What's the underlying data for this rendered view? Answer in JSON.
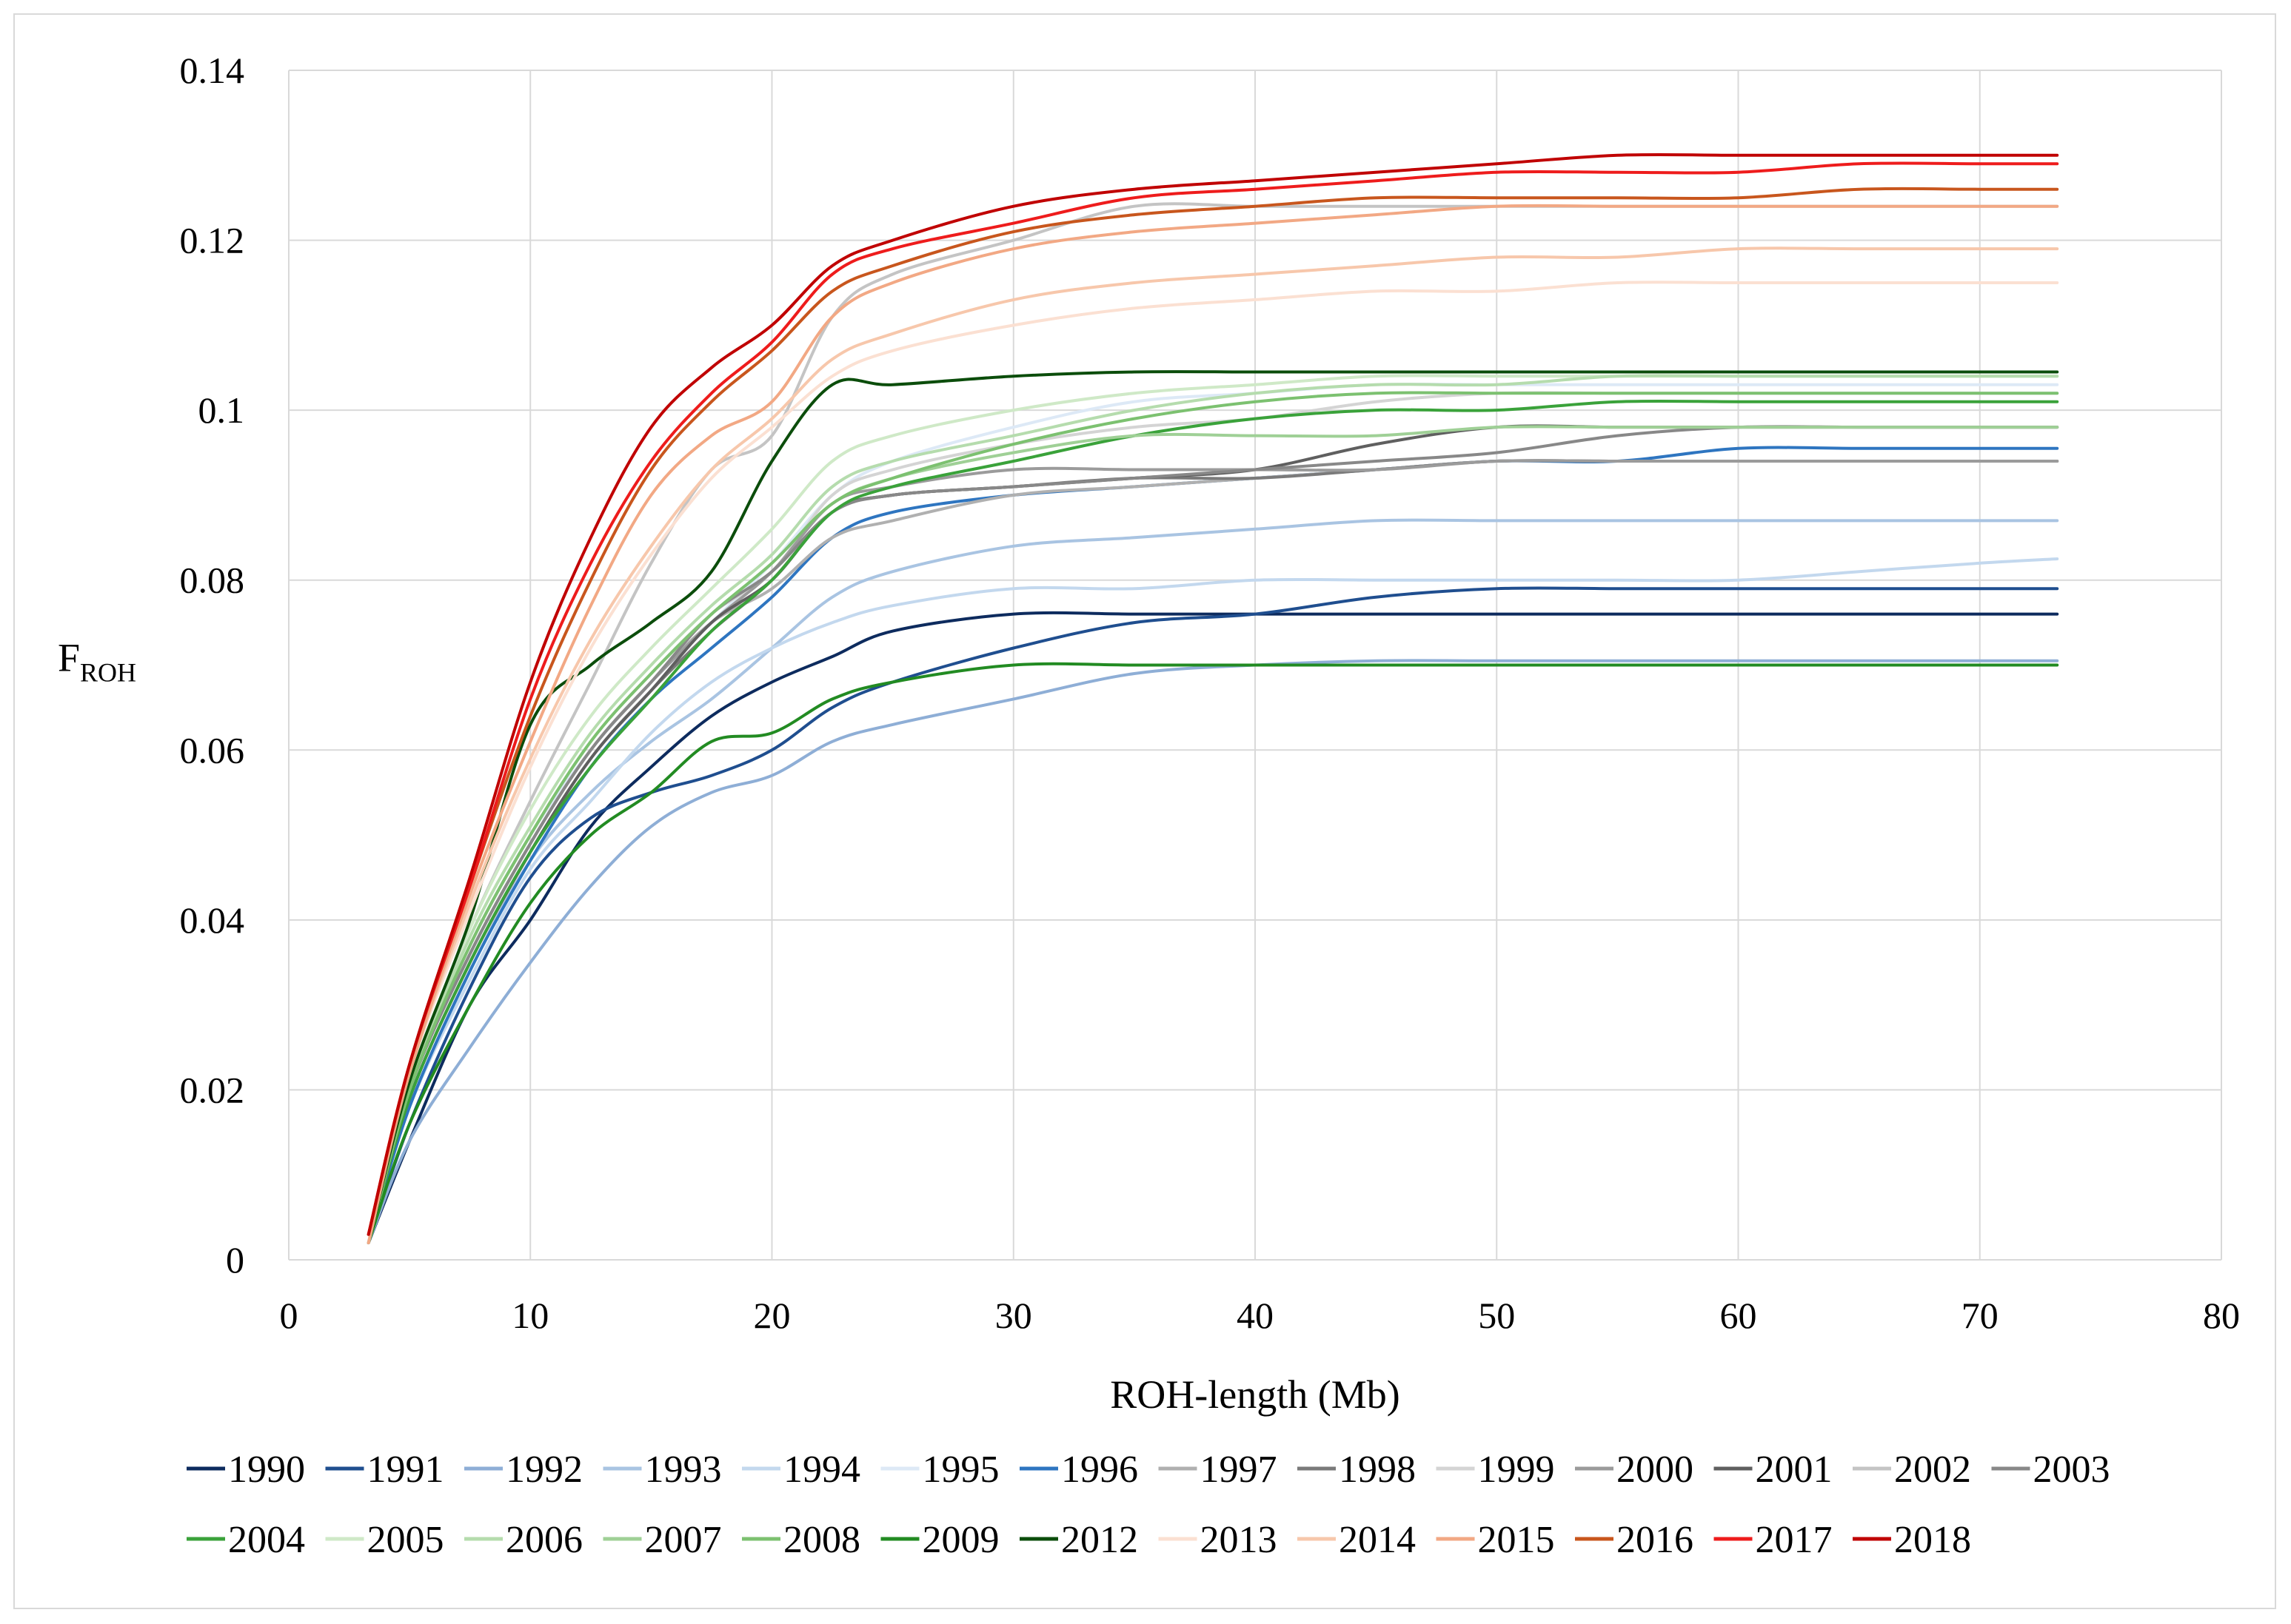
{
  "chart_data": {
    "type": "line",
    "title": "",
    "xlabel": "ROH-length (Mb)",
    "ylabel_main": "F",
    "ylabel_sub": "ROH",
    "xlim": [
      0,
      80
    ],
    "ylim": [
      0,
      0.14
    ],
    "xticks": [
      "0",
      "10",
      "20",
      "30",
      "40",
      "50",
      "60",
      "70",
      "80"
    ],
    "yticks": [
      "0",
      "0.02",
      "0.04",
      "0.06",
      "0.08",
      "0.1",
      "0.12",
      "0.14"
    ],
    "grid": true,
    "legend_position": "bottom",
    "x": [
      3.3,
      5,
      7.5,
      10,
      12.5,
      15,
      17.5,
      20,
      22.5,
      25,
      30,
      35,
      40,
      45,
      50,
      55,
      60,
      65,
      70,
      73.2
    ],
    "series": [
      {
        "name": "1990",
        "color": "#0d2b5e",
        "values": [
          0.002,
          0.014,
          0.03,
          0.04,
          0.051,
          0.058,
          0.064,
          0.068,
          0.071,
          0.074,
          0.076,
          0.076,
          0.076,
          0.076,
          0.076,
          0.076,
          0.076,
          0.076,
          0.076,
          0.076
        ]
      },
      {
        "name": "1991",
        "color": "#1f4e8f",
        "values": [
          0.002,
          0.016,
          0.032,
          0.045,
          0.052,
          0.055,
          0.057,
          0.06,
          0.065,
          0.068,
          0.072,
          0.075,
          0.076,
          0.078,
          0.079,
          0.079,
          0.079,
          0.079,
          0.079,
          0.079
        ]
      },
      {
        "name": "1992",
        "color": "#8eaed6",
        "values": [
          0.002,
          0.014,
          0.025,
          0.035,
          0.044,
          0.051,
          0.055,
          0.057,
          0.061,
          0.063,
          0.066,
          0.069,
          0.07,
          0.0705,
          0.0705,
          0.0705,
          0.0705,
          0.0705,
          0.0705,
          0.0705
        ]
      },
      {
        "name": "1993",
        "color": "#a9c4e2",
        "values": [
          0.002,
          0.018,
          0.034,
          0.047,
          0.055,
          0.061,
          0.066,
          0.072,
          0.078,
          0.081,
          0.084,
          0.085,
          0.086,
          0.087,
          0.087,
          0.087,
          0.087,
          0.087,
          0.087,
          0.087
        ]
      },
      {
        "name": "1994",
        "color": "#c3d8ee",
        "values": [
          0.002,
          0.018,
          0.033,
          0.046,
          0.054,
          0.062,
          0.068,
          0.072,
          0.075,
          0.077,
          0.079,
          0.079,
          0.08,
          0.08,
          0.08,
          0.08,
          0.08,
          0.081,
          0.082,
          0.0825
        ]
      },
      {
        "name": "1995",
        "color": "#dde9f6",
        "values": [
          0.002,
          0.02,
          0.037,
          0.05,
          0.06,
          0.068,
          0.075,
          0.082,
          0.09,
          0.094,
          0.098,
          0.101,
          0.102,
          0.103,
          0.103,
          0.103,
          0.103,
          0.103,
          0.103,
          0.103
        ]
      },
      {
        "name": "1996",
        "color": "#2e75c0",
        "values": [
          0.002,
          0.018,
          0.034,
          0.047,
          0.058,
          0.066,
          0.072,
          0.078,
          0.085,
          0.088,
          0.09,
          0.091,
          0.092,
          0.093,
          0.094,
          0.094,
          0.0955,
          0.0955,
          0.0955,
          0.0955
        ]
      },
      {
        "name": "1997",
        "color": "#b0b0b0",
        "values": [
          0.002,
          0.02,
          0.036,
          0.049,
          0.06,
          0.068,
          0.075,
          0.079,
          0.085,
          0.087,
          0.09,
          0.091,
          0.092,
          0.093,
          0.094,
          0.094,
          0.094,
          0.094,
          0.094,
          0.094
        ]
      },
      {
        "name": "1998",
        "color": "#7a7a7a",
        "values": [
          0.002,
          0.019,
          0.035,
          0.048,
          0.059,
          0.067,
          0.074,
          0.08,
          0.088,
          0.09,
          0.091,
          0.092,
          0.092,
          0.093,
          0.094,
          0.094,
          0.094,
          0.094,
          0.094,
          0.094
        ]
      },
      {
        "name": "1999",
        "color": "#d4d4d4",
        "values": [
          0.002,
          0.02,
          0.037,
          0.05,
          0.061,
          0.069,
          0.076,
          0.081,
          0.09,
          0.093,
          0.096,
          0.098,
          0.099,
          0.101,
          0.102,
          0.102,
          0.102,
          0.102,
          0.102,
          0.102
        ]
      },
      {
        "name": "2000",
        "color": "#9b9b9b",
        "values": [
          0.002,
          0.02,
          0.036,
          0.049,
          0.06,
          0.068,
          0.075,
          0.081,
          0.089,
          0.091,
          0.093,
          0.093,
          0.093,
          0.093,
          0.094,
          0.094,
          0.094,
          0.094,
          0.094,
          0.094
        ]
      },
      {
        "name": "2001",
        "color": "#5f5f5f",
        "values": [
          0.002,
          0.019,
          0.035,
          0.048,
          0.059,
          0.067,
          0.075,
          0.08,
          0.088,
          0.09,
          0.091,
          0.092,
          0.093,
          0.096,
          0.098,
          0.098,
          0.098,
          0.098,
          0.098,
          0.098
        ]
      },
      {
        "name": "2002",
        "color": "#c4c4c4",
        "values": [
          0.002,
          0.021,
          0.039,
          0.054,
          0.068,
          0.082,
          0.093,
          0.097,
          0.111,
          0.116,
          0.12,
          0.124,
          0.124,
          0.124,
          0.124,
          0.124,
          0.124,
          0.124,
          0.124,
          0.124
        ]
      },
      {
        "name": "2003",
        "color": "#888888",
        "values": [
          0.002,
          0.02,
          0.036,
          0.049,
          0.06,
          0.068,
          0.076,
          0.081,
          0.088,
          0.09,
          0.091,
          0.092,
          0.093,
          0.094,
          0.095,
          0.097,
          0.098,
          0.098,
          0.098,
          0.098
        ]
      },
      {
        "name": "2004",
        "color": "#3aa23a",
        "values": [
          0.002,
          0.019,
          0.035,
          0.048,
          0.058,
          0.066,
          0.074,
          0.08,
          0.088,
          0.091,
          0.094,
          0.097,
          0.099,
          0.1,
          0.1,
          0.101,
          0.101,
          0.101,
          0.101,
          0.101
        ]
      },
      {
        "name": "2005",
        "color": "#cfe9c7",
        "values": [
          0.002,
          0.021,
          0.039,
          0.053,
          0.064,
          0.072,
          0.079,
          0.086,
          0.094,
          0.097,
          0.1,
          0.102,
          0.103,
          0.104,
          0.104,
          0.104,
          0.104,
          0.104,
          0.104,
          0.104
        ]
      },
      {
        "name": "2006",
        "color": "#b5dcad",
        "values": [
          0.002,
          0.02,
          0.038,
          0.051,
          0.062,
          0.07,
          0.077,
          0.083,
          0.091,
          0.094,
          0.097,
          0.1,
          0.102,
          0.103,
          0.103,
          0.104,
          0.104,
          0.104,
          0.104,
          0.104
        ]
      },
      {
        "name": "2007",
        "color": "#9fd096",
        "values": [
          0.002,
          0.02,
          0.037,
          0.05,
          0.061,
          0.069,
          0.076,
          0.082,
          0.089,
          0.092,
          0.095,
          0.097,
          0.097,
          0.097,
          0.098,
          0.098,
          0.098,
          0.098,
          0.098,
          0.098
        ]
      },
      {
        "name": "2008",
        "color": "#7cc170",
        "values": [
          0.002,
          0.02,
          0.037,
          0.05,
          0.061,
          0.069,
          0.076,
          0.082,
          0.089,
          0.092,
          0.096,
          0.099,
          0.101,
          0.102,
          0.102,
          0.102,
          0.102,
          0.102,
          0.102,
          0.102
        ]
      },
      {
        "name": "2009",
        "color": "#228b22",
        "values": [
          0.002,
          0.016,
          0.03,
          0.042,
          0.05,
          0.055,
          0.061,
          0.062,
          0.066,
          0.068,
          0.07,
          0.07,
          0.07,
          0.07,
          0.07,
          0.07,
          0.07,
          0.07,
          0.07,
          0.07
        ]
      },
      {
        "name": "2012",
        "color": "#0b4d0b",
        "values": [
          0.002,
          0.021,
          0.04,
          0.063,
          0.07,
          0.075,
          0.081,
          0.094,
          0.103,
          0.103,
          0.104,
          0.1045,
          0.1045,
          0.1045,
          0.1045,
          0.1045,
          0.1045,
          0.1045,
          0.1045,
          0.1045
        ]
      },
      {
        "name": "2013",
        "color": "#fbe0d2",
        "values": [
          0.002,
          0.022,
          0.041,
          0.058,
          0.072,
          0.083,
          0.092,
          0.098,
          0.104,
          0.107,
          0.11,
          0.112,
          0.113,
          0.114,
          0.114,
          0.115,
          0.115,
          0.115,
          0.115,
          0.115
        ]
      },
      {
        "name": "2014",
        "color": "#f7c7ab",
        "values": [
          0.002,
          0.022,
          0.042,
          0.059,
          0.073,
          0.084,
          0.093,
          0.099,
          0.106,
          0.109,
          0.113,
          0.115,
          0.116,
          0.117,
          0.118,
          0.118,
          0.119,
          0.119,
          0.119,
          0.119
        ]
      },
      {
        "name": "2015",
        "color": "#f2a884",
        "values": [
          0.002,
          0.022,
          0.043,
          0.061,
          0.077,
          0.09,
          0.097,
          0.101,
          0.111,
          0.115,
          0.119,
          0.121,
          0.122,
          0.123,
          0.124,
          0.124,
          0.124,
          0.124,
          0.124,
          0.124
        ]
      },
      {
        "name": "2016",
        "color": "#c8561d",
        "values": [
          0.003,
          0.023,
          0.044,
          0.064,
          0.08,
          0.093,
          0.101,
          0.107,
          0.114,
          0.117,
          0.121,
          0.123,
          0.124,
          0.125,
          0.125,
          0.125,
          0.125,
          0.126,
          0.126,
          0.126
        ]
      },
      {
        "name": "2017",
        "color": "#ee1c1c",
        "values": [
          0.003,
          0.023,
          0.044,
          0.066,
          0.082,
          0.094,
          0.102,
          0.108,
          0.116,
          0.119,
          0.122,
          0.125,
          0.126,
          0.127,
          0.128,
          0.128,
          0.128,
          0.129,
          0.129,
          0.129
        ]
      },
      {
        "name": "2018",
        "color": "#c00000",
        "values": [
          0.003,
          0.023,
          0.045,
          0.068,
          0.085,
          0.098,
          0.105,
          0.11,
          0.117,
          0.12,
          0.124,
          0.126,
          0.127,
          0.128,
          0.129,
          0.13,
          0.13,
          0.13,
          0.13,
          0.13
        ]
      }
    ]
  }
}
